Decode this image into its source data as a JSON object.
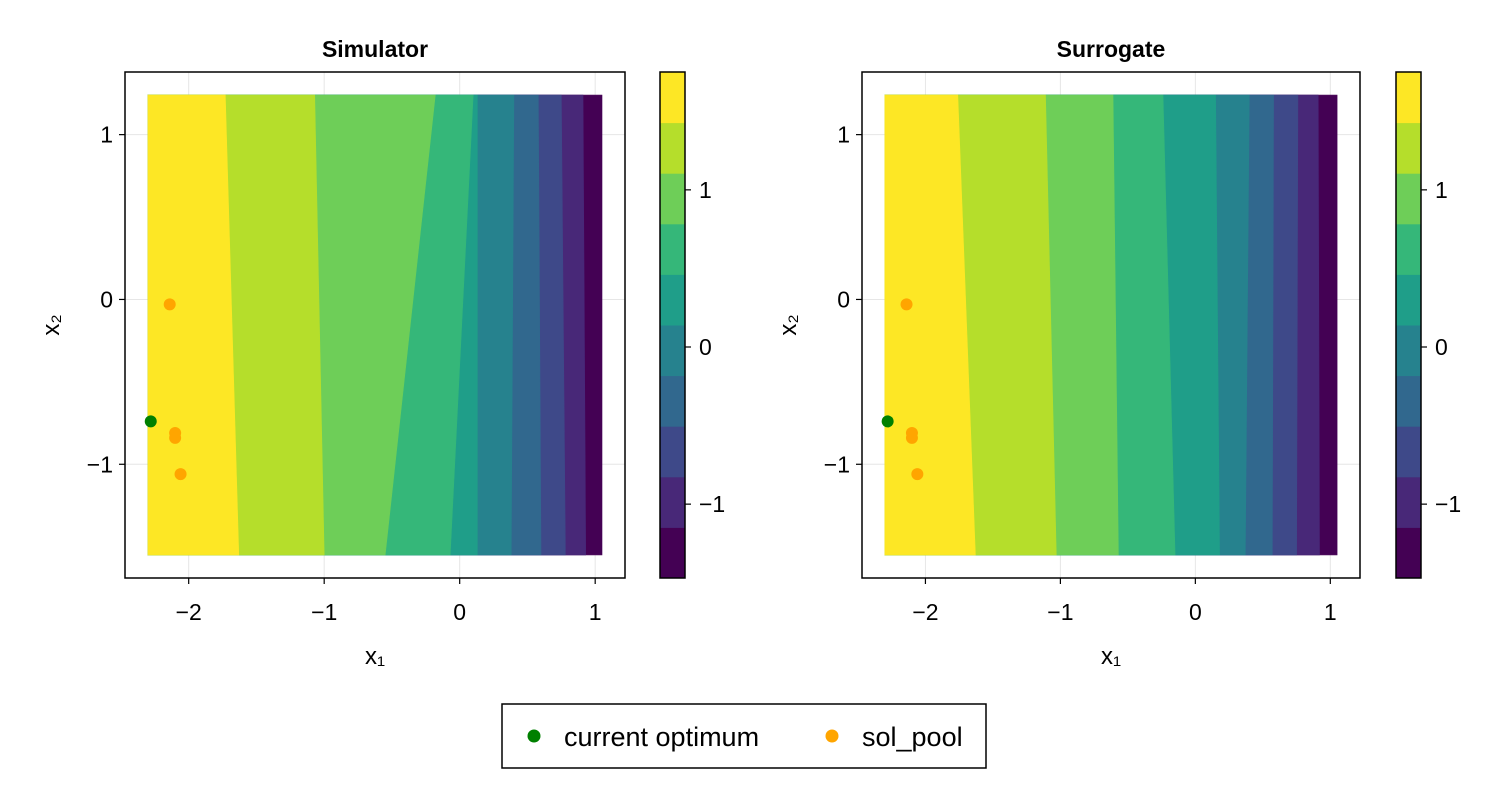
{
  "chart_data": [
    {
      "type": "contour",
      "title": "Simulator",
      "xlabel": "x₁",
      "ylabel": "x₂",
      "xlim": [
        -2.47,
        1.22
      ],
      "ylim": [
        -1.69,
        1.38
      ],
      "xticks": [
        -2,
        -1,
        0,
        1
      ],
      "yticks": [
        -1,
        0,
        1
      ],
      "xtick_labels": [
        "−2",
        "−1",
        "0",
        "1"
      ],
      "ytick_labels": [
        "−1",
        "0",
        "1"
      ],
      "grid": true,
      "domain": {
        "x": [
          -2.3,
          1.05
        ],
        "y": [
          -1.55,
          1.24
        ]
      },
      "bands": [
        {
          "color": "#fde725",
          "x_top": -1.73,
          "x_bottom": -1.63
        },
        {
          "color": "#b5de2b",
          "x_top": -1.07,
          "x_bottom": -1.0
        },
        {
          "color": "#6ece58",
          "x_top": -0.18,
          "x_bottom": -0.55
        },
        {
          "color": "#35b779",
          "x_top": 0.1,
          "x_bottom": -0.07
        },
        {
          "color": "#1f9e89",
          "x_top": 0.13,
          "x_bottom": 0.13
        },
        {
          "color": "#26828e",
          "x_top": 0.4,
          "x_bottom": 0.38
        },
        {
          "color": "#31688e",
          "x_top": 0.58,
          "x_bottom": 0.6
        },
        {
          "color": "#3e4989",
          "x_top": 0.75,
          "x_bottom": 0.78
        },
        {
          "color": "#482878",
          "x_top": 0.91,
          "x_bottom": 0.93
        },
        {
          "color": "#440154",
          "x_top": 1.05,
          "x_bottom": 1.05
        }
      ],
      "series": [
        {
          "name": "current optimum",
          "color": "#008000",
          "points": [
            [
              -2.28,
              -0.74
            ]
          ]
        },
        {
          "name": "sol_pool",
          "color": "#ffa500",
          "points": [
            [
              -2.14,
              -0.03
            ],
            [
              -2.1,
              -0.81
            ],
            [
              -2.1,
              -0.84
            ],
            [
              -2.06,
              -1.06
            ]
          ]
        }
      ],
      "colorbar": {
        "levels": [
          "#440154",
          "#482878",
          "#3e4989",
          "#31688e",
          "#26828e",
          "#1f9e89",
          "#35b779",
          "#6ece58",
          "#b5de2b",
          "#fde725"
        ],
        "range": [
          -1.47,
          1.75
        ],
        "ticks": [
          -1,
          0,
          1
        ],
        "tick_labels": [
          "−1",
          "0",
          "1"
        ]
      }
    },
    {
      "type": "contour",
      "title": "Surrogate",
      "xlabel": "x₁",
      "ylabel": "x₂",
      "xlim": [
        -2.47,
        1.22
      ],
      "ylim": [
        -1.69,
        1.38
      ],
      "xticks": [
        -2,
        -1,
        0,
        1
      ],
      "yticks": [
        -1,
        0,
        1
      ],
      "xtick_labels": [
        "−2",
        "−1",
        "0",
        "1"
      ],
      "ytick_labels": [
        "−1",
        "0",
        "1"
      ],
      "grid": true,
      "domain": {
        "x": [
          -2.3,
          1.05
        ],
        "y": [
          -1.55,
          1.24
        ]
      },
      "bands": [
        {
          "color": "#fde725",
          "x_top": -1.76,
          "x_bottom": -1.63
        },
        {
          "color": "#b5de2b",
          "x_top": -1.11,
          "x_bottom": -1.03
        },
        {
          "color": "#6ece58",
          "x_top": -0.61,
          "x_bottom": -0.57
        },
        {
          "color": "#35b779",
          "x_top": -0.24,
          "x_bottom": -0.15
        },
        {
          "color": "#1f9e89",
          "x_top": 0.15,
          "x_bottom": 0.18
        },
        {
          "color": "#26828e",
          "x_top": 0.4,
          "x_bottom": 0.37
        },
        {
          "color": "#31688e",
          "x_top": 0.58,
          "x_bottom": 0.57
        },
        {
          "color": "#3e4989",
          "x_top": 0.76,
          "x_bottom": 0.75
        },
        {
          "color": "#482878",
          "x_top": 0.91,
          "x_bottom": 0.92
        },
        {
          "color": "#440154",
          "x_top": 1.05,
          "x_bottom": 1.05
        }
      ],
      "series": [
        {
          "name": "current optimum",
          "color": "#008000",
          "points": [
            [
              -2.28,
              -0.74
            ]
          ]
        },
        {
          "name": "sol_pool",
          "color": "#ffa500",
          "points": [
            [
              -2.14,
              -0.03
            ],
            [
              -2.1,
              -0.81
            ],
            [
              -2.1,
              -0.84
            ],
            [
              -2.06,
              -1.06
            ]
          ]
        }
      ],
      "colorbar": {
        "levels": [
          "#440154",
          "#482878",
          "#3e4989",
          "#31688e",
          "#26828e",
          "#1f9e89",
          "#35b779",
          "#6ece58",
          "#b5de2b",
          "#fde725"
        ],
        "range": [
          -1.47,
          1.75
        ],
        "ticks": [
          -1,
          0,
          1
        ],
        "tick_labels": [
          "−1",
          "0",
          "1"
        ]
      }
    }
  ],
  "legend": {
    "placement": "bottom-center",
    "entries": [
      {
        "label": "current optimum",
        "color": "#008000"
      },
      {
        "label": "sol_pool",
        "color": "#ffa500"
      }
    ]
  }
}
